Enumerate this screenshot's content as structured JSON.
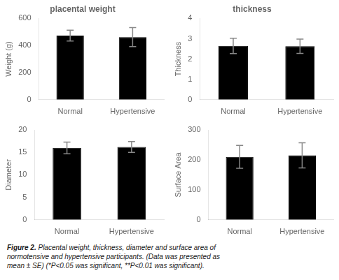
{
  "chart_data": [
    {
      "type": "bar",
      "title": "placental weight",
      "ylabel": "Weight (g)",
      "categories": [
        "Normal",
        "Hypertensive"
      ],
      "values": [
        473,
        462
      ],
      "errors": [
        40,
        70
      ],
      "colors": [
        "#000000",
        "#000000"
      ],
      "ylim": [
        0,
        600
      ],
      "yticks": [
        0,
        200,
        400,
        600
      ],
      "grid": false
    },
    {
      "type": "bar",
      "title": "thickness",
      "ylabel": "Thickness",
      "categories": [
        "Normal",
        "Hypertensive"
      ],
      "values": [
        2.65,
        2.63
      ],
      "errors": [
        0.38,
        0.35
      ],
      "colors": [
        "#000000",
        "#000000"
      ],
      "ylim": [
        0,
        4
      ],
      "yticks": [
        0,
        1,
        2,
        3,
        4
      ],
      "grid": false
    },
    {
      "type": "bar",
      "ylabel": "Diameter",
      "categories": [
        "Normal",
        "Hypertensive"
      ],
      "values": [
        16.0,
        16.2
      ],
      "errors": [
        1.3,
        1.2
      ],
      "colors": [
        "#000000",
        "#000000"
      ],
      "ylim": [
        0,
        20
      ],
      "yticks": [
        0,
        5,
        10,
        15,
        20
      ],
      "grid": false
    },
    {
      "type": "bar",
      "ylabel": "Surface Area",
      "categories": [
        "Normal",
        "Hypertensive"
      ],
      "values": [
        210,
        215
      ],
      "errors": [
        38,
        42
      ],
      "colors": [
        "#000000",
        "#000000"
      ],
      "ylim": [
        0,
        300
      ],
      "yticks": [
        0,
        100,
        200,
        300
      ],
      "grid": false
    }
  ],
  "caption": {
    "label": "Figure 2.",
    "text": " Placental weight, thickness, diameter and surface area of\nnormotensive and hypertensive participants. (Data was presented as\nmean ± SE) (*P<0.05 was significant, **P<0.01 was significant)."
  }
}
